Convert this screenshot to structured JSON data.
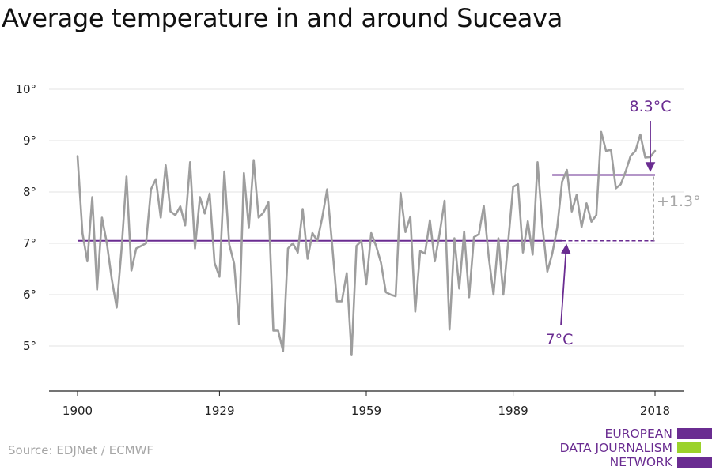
{
  "title": "Average temperature in and around Suceava",
  "source": "Source: EDJNet / ECMWF",
  "logo": {
    "lines": [
      "EUROPEAN",
      "DATA JOURNALISM",
      "NETWORK"
    ]
  },
  "colors": {
    "series": "#9e9e9e",
    "accent": "#6a2c91",
    "logo_green": "#9bd22a",
    "grid": "#e3e3e3",
    "diff": "#a8a8a8"
  },
  "chart_data": {
    "type": "line",
    "title": "Average temperature in and around Suceava",
    "xlabel": "",
    "ylabel": "",
    "x_ticks": [
      1900,
      1929,
      1959,
      1989,
      2018
    ],
    "y_ticks": [
      5,
      6,
      7,
      8,
      9,
      10
    ],
    "y_tick_labels": [
      "5°",
      "6°",
      "7°",
      "8°",
      "9°",
      "10°"
    ],
    "xlim": [
      1900,
      2018
    ],
    "ylim": [
      4,
      10.2
    ],
    "grid": "horizontal",
    "series": [
      {
        "x": [
          1900,
          1901,
          1902,
          1903,
          1904,
          1905,
          1906,
          1907,
          1908,
          1909,
          1910,
          1911,
          1912,
          1913,
          1914,
          1915,
          1916,
          1917,
          1918,
          1919,
          1920,
          1921,
          1922,
          1923,
          1924,
          1925,
          1926,
          1927,
          1928,
          1929,
          1930,
          1931,
          1932,
          1933,
          1934,
          1935,
          1936,
          1937,
          1938,
          1939,
          1940,
          1941,
          1942,
          1943,
          1944,
          1945,
          1946,
          1947,
          1948,
          1949,
          1950,
          1951,
          1952,
          1953,
          1954,
          1955,
          1956,
          1957,
          1958,
          1959,
          1960,
          1961,
          1962,
          1963,
          1964,
          1965,
          1966,
          1967,
          1968,
          1969,
          1970,
          1971,
          1972,
          1973,
          1974,
          1975,
          1976,
          1977,
          1978,
          1979,
          1980,
          1981,
          1982,
          1983,
          1984,
          1985,
          1986,
          1987,
          1988,
          1989,
          1990,
          1991,
          1992,
          1993,
          1994,
          1995,
          1996,
          1997,
          1998,
          1999,
          2000,
          2001,
          2002,
          2003,
          2004,
          2005,
          2006,
          2007,
          2008,
          2009,
          2010,
          2011,
          2012,
          2013,
          2014,
          2015,
          2016,
          2017,
          2018
        ],
        "values": [
          8.7,
          7.2,
          6.65,
          7.9,
          6.1,
          7.5,
          7.0,
          6.3,
          5.75,
          6.9,
          8.3,
          6.47,
          6.9,
          6.95,
          7.0,
          8.05,
          8.25,
          7.5,
          8.52,
          7.62,
          7.55,
          7.72,
          7.35,
          8.58,
          6.9,
          7.9,
          7.58,
          7.97,
          6.62,
          6.35,
          8.4,
          6.98,
          6.6,
          5.42,
          8.37,
          7.3,
          8.62,
          7.5,
          7.6,
          7.8,
          5.3,
          5.3,
          4.9,
          6.9,
          7.0,
          6.82,
          7.67,
          6.7,
          7.2,
          7.05,
          7.5,
          8.05,
          7.0,
          5.87,
          5.87,
          6.42,
          4.82,
          6.95,
          7.05,
          6.2,
          7.2,
          6.95,
          6.62,
          6.05,
          6.0,
          5.97,
          7.98,
          7.22,
          7.52,
          5.67,
          6.85,
          6.8,
          7.45,
          6.65,
          7.2,
          7.83,
          5.32,
          7.1,
          6.12,
          7.23,
          5.95,
          7.12,
          7.18,
          7.73,
          6.75,
          6.0,
          7.1,
          6.0,
          7.03,
          8.1,
          8.15,
          6.82,
          7.43,
          6.78,
          8.58,
          7.33,
          6.45,
          6.8,
          7.3,
          8.2,
          8.43,
          7.62,
          7.95,
          7.32,
          7.78,
          7.42,
          7.55,
          9.17,
          8.8,
          8.82,
          8.07,
          8.15,
          8.4,
          8.7,
          8.8,
          9.12,
          8.67,
          8.68,
          8.8
        ]
      }
    ],
    "reference_lines": [
      {
        "value": 7.05,
        "label": "7°C",
        "from": 1900,
        "to": 2018
      },
      {
        "value": 8.33,
        "label": "8.3°C",
        "from": 1997,
        "to": 2018
      }
    ],
    "difference_label": "+1.3°"
  }
}
